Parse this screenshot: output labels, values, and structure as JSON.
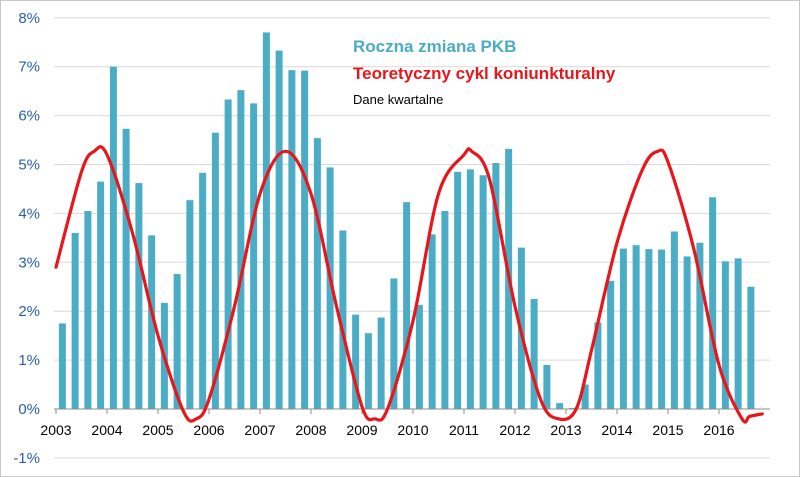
{
  "chart_data": {
    "type": "bar",
    "legend": {
      "series1": "Roczna zmiana PKB",
      "series2": "Teoretyczny cykl koniunkturalny",
      "note": "Dane kwartalne"
    },
    "legend_placement": "top-center",
    "grid": true,
    "ylim": [
      -1,
      8
    ],
    "y_ticks": [
      "-1%",
      "0%",
      "1%",
      "2%",
      "3%",
      "4%",
      "5%",
      "6%",
      "7%",
      "8%"
    ],
    "y_tick_values": [
      -1,
      0,
      1,
      2,
      3,
      4,
      5,
      6,
      7,
      8
    ],
    "x_tick_labels": [
      "2003",
      "2004",
      "2005",
      "2006",
      "2007",
      "2008",
      "2009",
      "2010",
      "2011",
      "2012",
      "2013",
      "2014",
      "2015",
      "2016"
    ],
    "categories": [
      "2003Q1",
      "2003Q2",
      "2003Q3",
      "2003Q4",
      "2004Q1",
      "2004Q2",
      "2004Q3",
      "2004Q4",
      "2005Q1",
      "2005Q2",
      "2005Q3",
      "2005Q4",
      "2006Q1",
      "2006Q2",
      "2006Q3",
      "2006Q4",
      "2007Q1",
      "2007Q2",
      "2007Q3",
      "2007Q4",
      "2008Q1",
      "2008Q2",
      "2008Q3",
      "2008Q4",
      "2009Q1",
      "2009Q2",
      "2009Q3",
      "2009Q4",
      "2010Q1",
      "2010Q2",
      "2010Q3",
      "2010Q4",
      "2011Q1",
      "2011Q2",
      "2011Q3",
      "2011Q4",
      "2012Q1",
      "2012Q2",
      "2012Q3",
      "2012Q4",
      "2013Q1",
      "2013Q2",
      "2013Q3",
      "2013Q4",
      "2014Q1",
      "2014Q2",
      "2014Q3",
      "2014Q4",
      "2015Q1",
      "2015Q2",
      "2015Q3",
      "2015Q4",
      "2016Q1",
      "2016Q2",
      "2016Q3"
    ],
    "series": [
      {
        "name": "Roczna zmiana PKB",
        "type": "bar",
        "color": "#4bacc6",
        "values": [
          1.75,
          3.6,
          4.05,
          4.65,
          7.0,
          5.73,
          4.62,
          3.55,
          2.17,
          2.76,
          4.27,
          4.83,
          5.65,
          6.33,
          6.52,
          6.25,
          7.7,
          7.33,
          6.93,
          6.92,
          5.54,
          4.94,
          3.65,
          1.93,
          1.55,
          1.87,
          2.67,
          4.23,
          2.13,
          3.57,
          4.05,
          4.85,
          4.9,
          4.78,
          5.03,
          5.32,
          3.3,
          2.25,
          0.9,
          0.12,
          0.02,
          0.5,
          1.77,
          2.62,
          3.28,
          3.35,
          3.27,
          3.26,
          3.63,
          3.12,
          3.4,
          4.33,
          3.02,
          3.08,
          2.5
        ]
      },
      {
        "name": "Teoretyczny cykl koniunkturalny",
        "type": "line",
        "color": "#e8161b",
        "x": [
          2003.0,
          2003.5,
          2003.75,
          2004.0,
          2004.5,
          2005.0,
          2005.5,
          2005.75,
          2006.0,
          2006.5,
          2007.0,
          2007.5,
          2008.0,
          2008.5,
          2009.0,
          2009.25,
          2009.5,
          2010.0,
          2010.5,
          2011.0,
          2011.15,
          2011.5,
          2012.0,
          2012.5,
          2012.85,
          2013.2,
          2013.5,
          2014.0,
          2014.5,
          2014.8,
          2015.0,
          2015.5,
          2016.0,
          2016.45,
          2016.6,
          2016.85
        ],
        "values": [
          2.9,
          4.85,
          5.27,
          5.2,
          3.6,
          1.5,
          -0.05,
          -0.2,
          0.2,
          2.1,
          4.4,
          5.27,
          4.4,
          2.1,
          0.05,
          -0.2,
          0.0,
          1.8,
          4.4,
          5.2,
          5.27,
          4.7,
          2.1,
          0.2,
          -0.2,
          0.0,
          1.2,
          3.4,
          4.9,
          5.27,
          5.05,
          3.3,
          0.9,
          -0.2,
          -0.15,
          -0.1
        ]
      }
    ]
  }
}
